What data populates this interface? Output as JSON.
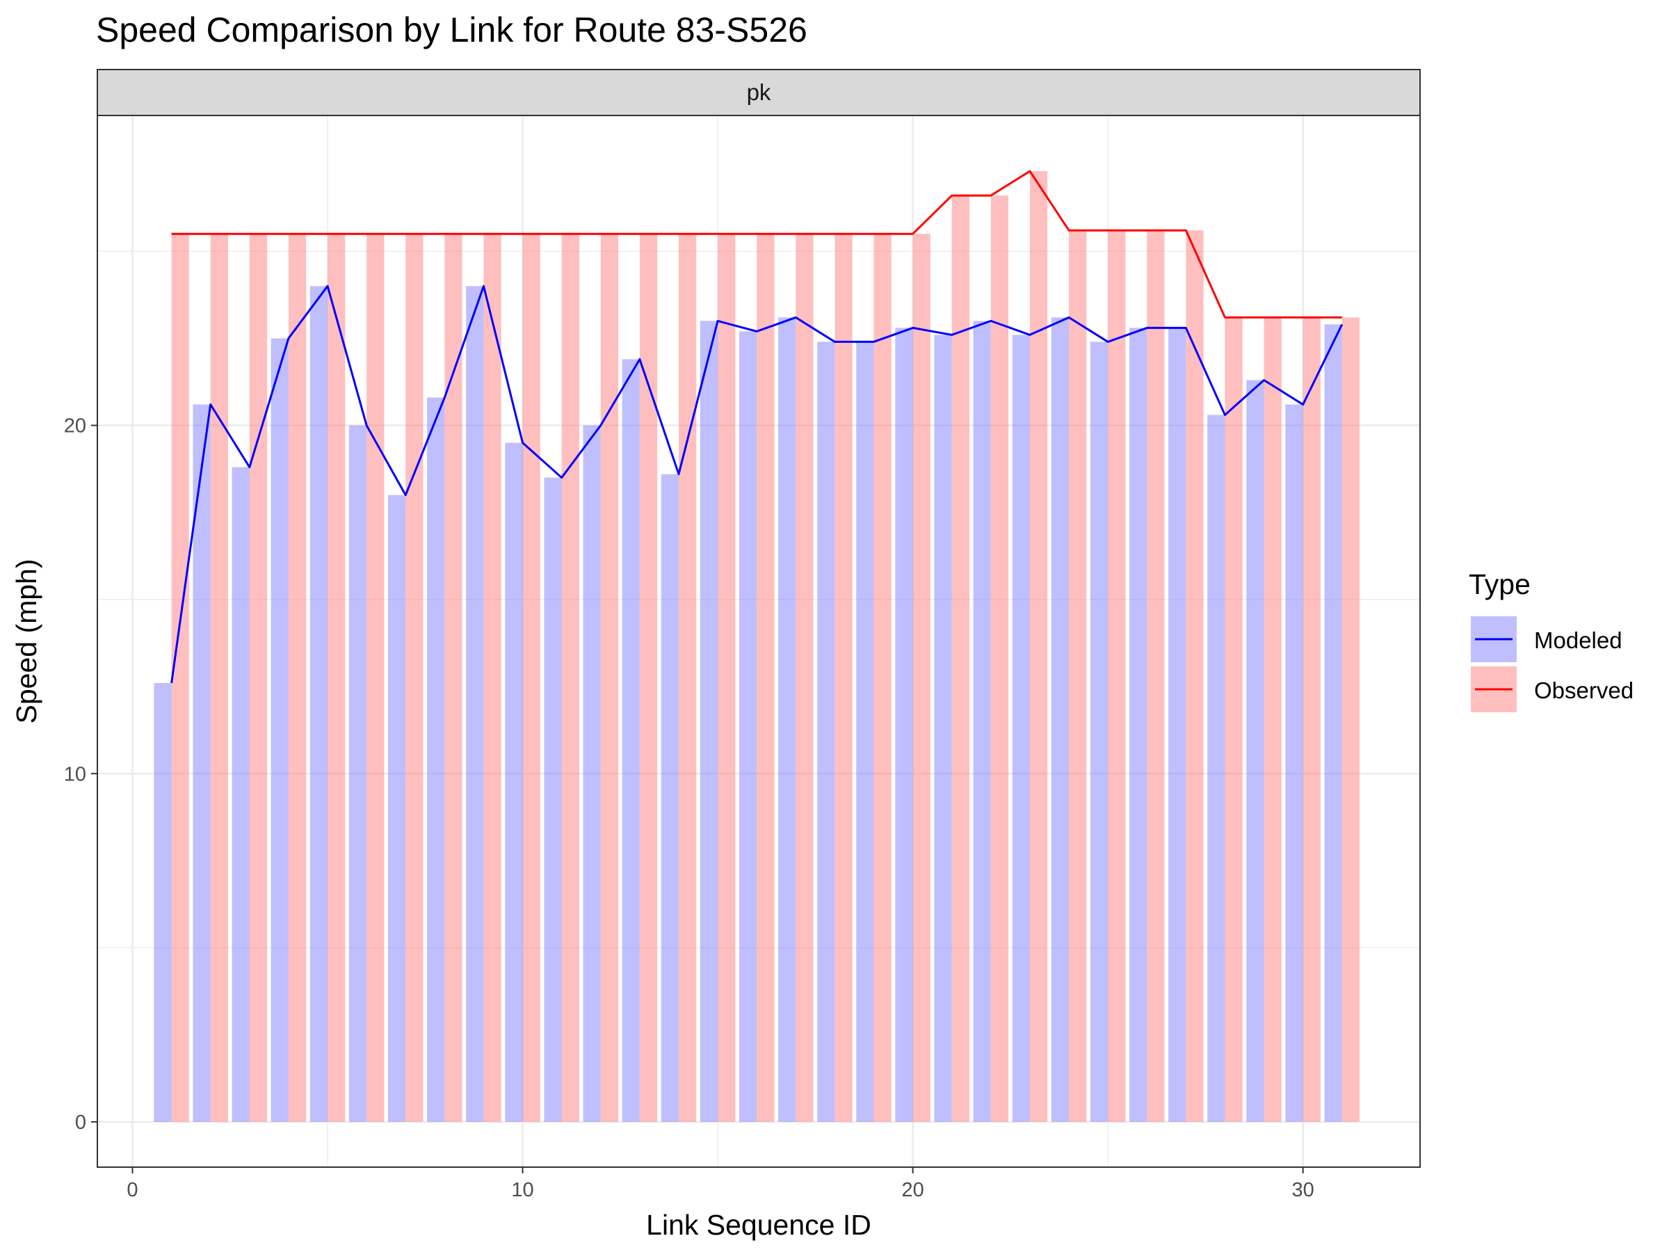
{
  "chart_data": {
    "type": "bar",
    "title": "Speed Comparison by Link for Route 83-S526",
    "facet": "pk",
    "xlabel": "Link Sequence ID",
    "ylabel": "Speed (mph)",
    "xlim": [
      -0.9,
      33
    ],
    "ylim": [
      -1.3,
      28.9
    ],
    "x_ticks": [
      0,
      10,
      20,
      30
    ],
    "y_ticks": [
      0,
      10,
      20
    ],
    "grid": true,
    "legend": {
      "title": "Type",
      "position": "right",
      "entries": [
        {
          "label": "Modeled",
          "fill": "#8080ff",
          "line": "#0000ff"
        },
        {
          "label": "Observed",
          "fill": "#ff8080",
          "line": "#ff0000"
        }
      ]
    },
    "x": [
      1,
      2,
      3,
      4,
      5,
      6,
      7,
      8,
      9,
      10,
      11,
      12,
      13,
      14,
      15,
      16,
      17,
      18,
      19,
      20,
      21,
      22,
      23,
      24,
      25,
      26,
      27,
      28,
      29,
      30,
      31
    ],
    "series": [
      {
        "name": "Modeled",
        "color": "#0000ff",
        "values": [
          12.6,
          20.6,
          18.8,
          22.5,
          24.0,
          20.0,
          18.0,
          20.8,
          24.0,
          19.5,
          18.5,
          20.0,
          21.9,
          18.6,
          23.0,
          22.7,
          23.1,
          22.4,
          22.4,
          22.8,
          22.6,
          23.0,
          22.6,
          23.1,
          22.4,
          22.8,
          22.8,
          20.3,
          21.3,
          20.6,
          22.9
        ]
      },
      {
        "name": "Observed",
        "color": "#ff0000",
        "values": [
          25.5,
          25.5,
          25.5,
          25.5,
          25.5,
          25.5,
          25.5,
          25.5,
          25.5,
          25.5,
          25.5,
          25.5,
          25.5,
          25.5,
          25.5,
          25.5,
          25.5,
          25.5,
          25.5,
          25.5,
          26.6,
          26.6,
          27.3,
          25.6,
          25.6,
          25.6,
          25.6,
          23.1,
          23.1,
          23.1,
          23.1
        ]
      }
    ]
  }
}
